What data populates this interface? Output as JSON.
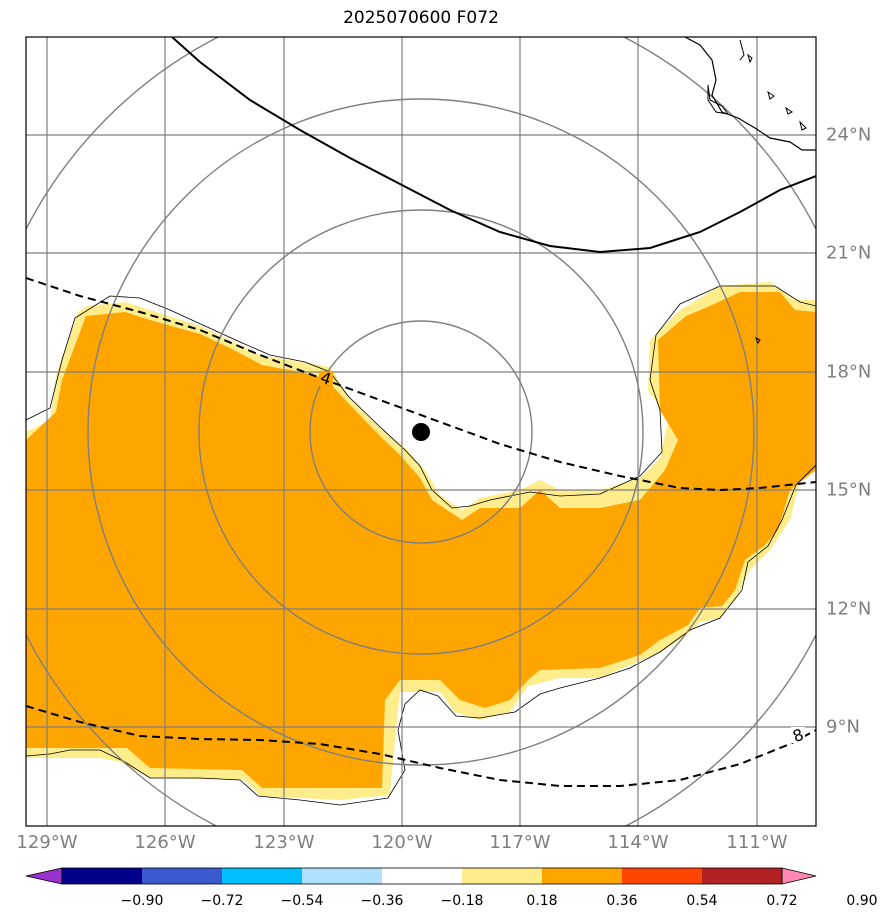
{
  "title": "2025070600 F072",
  "longitude_ticks": [
    "129°W",
    "126°W",
    "123°W",
    "120°W",
    "117°W",
    "114°W",
    "111°W"
  ],
  "latitude_ticks": [
    "24°N",
    "21°N",
    "18°N",
    "15°N",
    "12°N",
    "9°N"
  ],
  "contour_labels": [
    "4",
    "8"
  ],
  "storm_center": {
    "lon": -120.0,
    "lat": 16.5
  },
  "colorbar": {
    "levels": [
      "−0.90",
      "−0.72",
      "−0.54",
      "−0.36",
      "−0.18",
      "0.18",
      "0.36",
      "0.54",
      "0.72",
      "0.90"
    ],
    "colors": [
      "#9932cc",
      "#00008b",
      "#3a5bd0",
      "#00bfff",
      "#b0e0ff",
      "#ffffff",
      "#ffec8b",
      "#ffa500",
      "#ff4500",
      "#b22222",
      "#ff88b4"
    ]
  },
  "fill_colors": {
    "orange": "#ffa500",
    "light_yellow": "#ffec8b"
  },
  "grid_color": "#7f7f7f"
}
